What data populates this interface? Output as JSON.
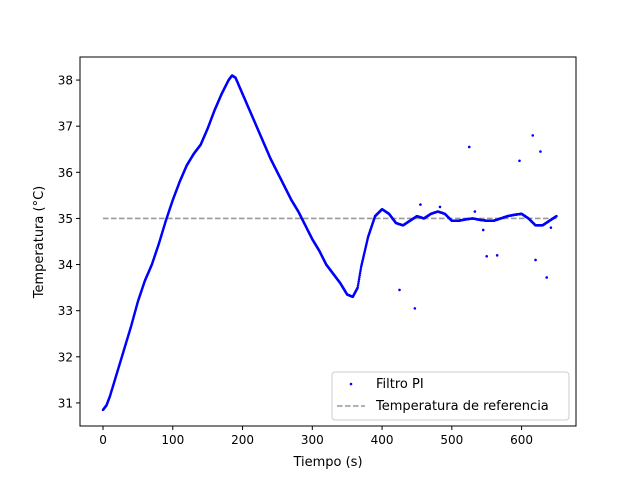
{
  "chart_data": {
    "type": "scatter",
    "xlabel": "Tiempo (s)",
    "ylabel": "Temperatura (°C)",
    "xlim": [
      -33,
      678
    ],
    "ylim": [
      30.5,
      38.5
    ],
    "xticks": [
      0,
      100,
      200,
      300,
      400,
      500,
      600
    ],
    "yticks": [
      31,
      32,
      33,
      34,
      35,
      36,
      37,
      38
    ],
    "legend_position": "lower-right",
    "series": [
      {
        "name": "Filtro PI",
        "kind": "scatter",
        "color": "#0000ff",
        "trace": [
          [
            0,
            30.85
          ],
          [
            5,
            30.95
          ],
          [
            10,
            31.15
          ],
          [
            15,
            31.4
          ],
          [
            20,
            31.65
          ],
          [
            30,
            32.15
          ],
          [
            40,
            32.65
          ],
          [
            50,
            33.2
          ],
          [
            60,
            33.65
          ],
          [
            70,
            34.0
          ],
          [
            80,
            34.45
          ],
          [
            90,
            34.95
          ],
          [
            100,
            35.4
          ],
          [
            110,
            35.8
          ],
          [
            120,
            36.15
          ],
          [
            130,
            36.4
          ],
          [
            140,
            36.6
          ],
          [
            150,
            36.95
          ],
          [
            160,
            37.35
          ],
          [
            170,
            37.7
          ],
          [
            180,
            38.0
          ],
          [
            185,
            38.1
          ],
          [
            190,
            38.05
          ],
          [
            200,
            37.7
          ],
          [
            210,
            37.35
          ],
          [
            220,
            37.0
          ],
          [
            230,
            36.65
          ],
          [
            240,
            36.3
          ],
          [
            250,
            36.0
          ],
          [
            260,
            35.7
          ],
          [
            270,
            35.4
          ],
          [
            280,
            35.15
          ],
          [
            290,
            34.85
          ],
          [
            300,
            34.55
          ],
          [
            310,
            34.3
          ],
          [
            320,
            34.0
          ],
          [
            330,
            33.8
          ],
          [
            340,
            33.6
          ],
          [
            350,
            33.35
          ],
          [
            358,
            33.3
          ],
          [
            365,
            33.5
          ],
          [
            370,
            33.95
          ],
          [
            380,
            34.6
          ],
          [
            390,
            35.05
          ],
          [
            400,
            35.2
          ],
          [
            410,
            35.1
          ],
          [
            420,
            34.9
          ],
          [
            430,
            34.85
          ],
          [
            440,
            34.95
          ],
          [
            450,
            35.05
          ],
          [
            460,
            35.0
          ],
          [
            470,
            35.1
          ],
          [
            480,
            35.15
          ],
          [
            490,
            35.1
          ],
          [
            500,
            34.95
          ],
          [
            510,
            34.95
          ],
          [
            520,
            34.98
          ],
          [
            530,
            35.0
          ],
          [
            540,
            34.97
          ],
          [
            550,
            34.95
          ],
          [
            560,
            34.95
          ],
          [
            570,
            35.0
          ],
          [
            580,
            35.05
          ],
          [
            590,
            35.08
          ],
          [
            600,
            35.1
          ],
          [
            610,
            35.0
          ],
          [
            620,
            34.85
          ],
          [
            630,
            34.85
          ],
          [
            640,
            34.95
          ],
          [
            650,
            35.05
          ]
        ],
        "outliers": [
          [
            425,
            33.45
          ],
          [
            447,
            33.05
          ],
          [
            455,
            35.3
          ],
          [
            483,
            35.25
          ],
          [
            525,
            36.55
          ],
          [
            533,
            35.15
          ],
          [
            545,
            34.75
          ],
          [
            550,
            34.18
          ],
          [
            565,
            34.2
          ],
          [
            597,
            36.25
          ],
          [
            616,
            36.8
          ],
          [
            620,
            34.1
          ],
          [
            627,
            36.45
          ],
          [
            636,
            33.72
          ],
          [
            642,
            34.8
          ]
        ]
      },
      {
        "name": "Temperatura de referencia",
        "kind": "line",
        "style": "dashed",
        "color": "#999999",
        "x": [
          0,
          650
        ],
        "y": [
          35,
          35
        ]
      }
    ]
  }
}
